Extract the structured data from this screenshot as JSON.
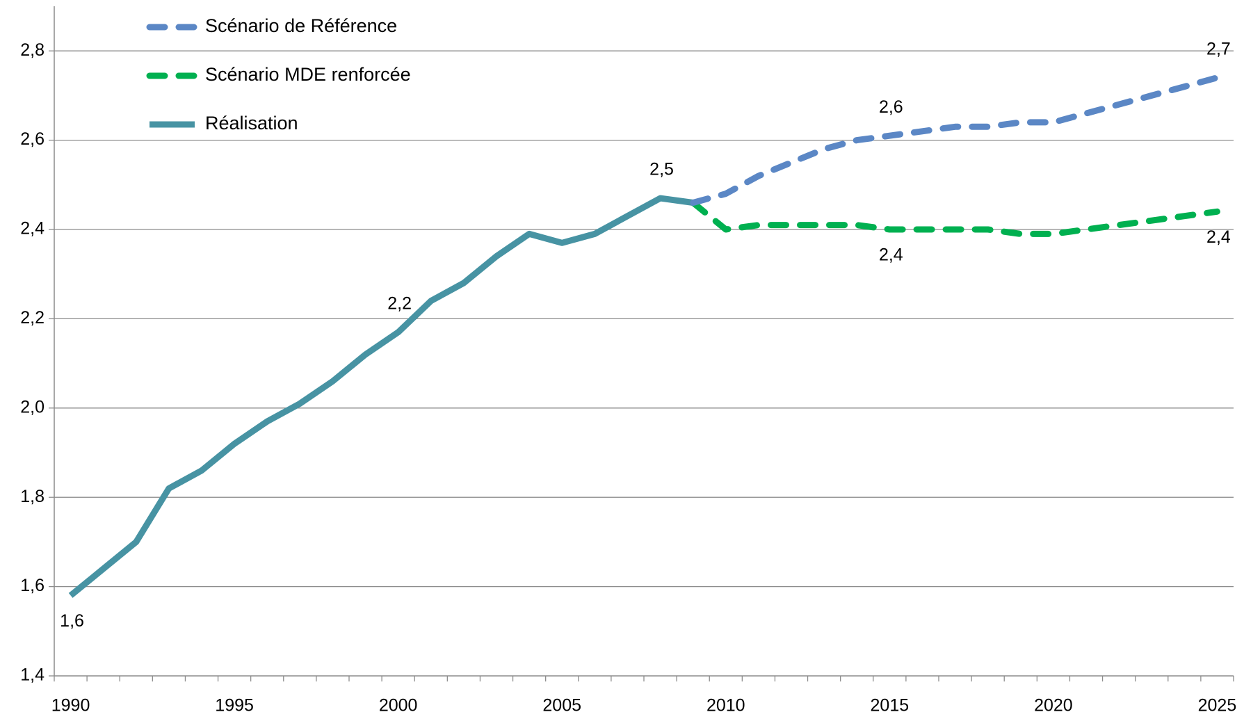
{
  "chart_data": {
    "type": "line",
    "categories": [
      "1990",
      null,
      null,
      null,
      null,
      "1995",
      null,
      null,
      null,
      null,
      "2000",
      null,
      null,
      null,
      null,
      "2005",
      null,
      null,
      null,
      null,
      "2010",
      null,
      null,
      null,
      null,
      "2015",
      null,
      null,
      null,
      null,
      "2020",
      null,
      null,
      null,
      null,
      "2025"
    ],
    "series": [
      {
        "name": "Scénario de Référence",
        "color": "#5b87c5",
        "dashed": true,
        "values": [
          null,
          null,
          null,
          null,
          null,
          null,
          null,
          null,
          null,
          null,
          null,
          null,
          null,
          null,
          null,
          null,
          null,
          null,
          null,
          2.46,
          2.48,
          2.52,
          2.55,
          2.58,
          2.6,
          2.61,
          2.62,
          2.63,
          2.63,
          2.64,
          2.64,
          2.66,
          2.68,
          2.7,
          2.72,
          2.74
        ],
        "value_labels": [
          null,
          null,
          null,
          null,
          null,
          null,
          null,
          null,
          null,
          null,
          null,
          null,
          null,
          null,
          null,
          null,
          null,
          null,
          null,
          null,
          null,
          null,
          null,
          null,
          null,
          "2,6",
          null,
          null,
          null,
          null,
          null,
          null,
          null,
          null,
          null,
          "2,7"
        ]
      },
      {
        "name": "Scénario MDE renforcée",
        "color": "#00b050",
        "dashed": true,
        "values": [
          null,
          null,
          null,
          null,
          null,
          null,
          null,
          null,
          null,
          null,
          null,
          null,
          null,
          null,
          null,
          null,
          null,
          null,
          null,
          2.46,
          2.4,
          2.41,
          2.41,
          2.41,
          2.41,
          2.4,
          2.4,
          2.4,
          2.4,
          2.39,
          2.39,
          2.4,
          2.41,
          2.42,
          2.43,
          2.44
        ],
        "value_labels": [
          null,
          null,
          null,
          null,
          null,
          null,
          null,
          null,
          null,
          null,
          null,
          null,
          null,
          null,
          null,
          null,
          null,
          null,
          null,
          null,
          null,
          null,
          null,
          null,
          null,
          "2,4",
          null,
          null,
          null,
          null,
          null,
          null,
          null,
          null,
          null,
          "2,4"
        ]
      },
      {
        "name": "Réalisation",
        "color": "#4793a3",
        "dashed": false,
        "values": [
          1.58,
          1.64,
          1.7,
          1.82,
          1.86,
          1.92,
          1.97,
          2.01,
          2.06,
          2.12,
          2.17,
          2.24,
          2.28,
          2.34,
          2.39,
          2.37,
          2.39,
          2.43,
          2.47,
          2.46,
          null,
          null,
          null,
          null,
          null,
          null,
          null,
          null,
          null,
          null,
          null,
          null,
          null,
          null,
          null,
          null
        ],
        "value_labels": [
          "1,6",
          null,
          null,
          null,
          null,
          null,
          null,
          null,
          null,
          null,
          "2,2",
          null,
          null,
          null,
          null,
          null,
          null,
          null,
          "2,5",
          null,
          null,
          null,
          null,
          null,
          null,
          null,
          null,
          null,
          null,
          null,
          null,
          null,
          null,
          null,
          null,
          null
        ]
      }
    ],
    "ylim": [
      1.4,
      2.9
    ],
    "yticks": [
      {
        "value": 1.4,
        "label": "1,4"
      },
      {
        "value": 1.6,
        "label": "1,6"
      },
      {
        "value": 1.8,
        "label": "1,8"
      },
      {
        "value": 2.0,
        "label": "2,0"
      },
      {
        "value": 2.2,
        "label": "2,2"
      },
      {
        "value": 2.4,
        "label": "2,4"
      },
      {
        "value": 2.6,
        "label": "2,6"
      },
      {
        "value": 2.8,
        "label": "2,8"
      }
    ],
    "grid": true,
    "legend": "top-left"
  }
}
